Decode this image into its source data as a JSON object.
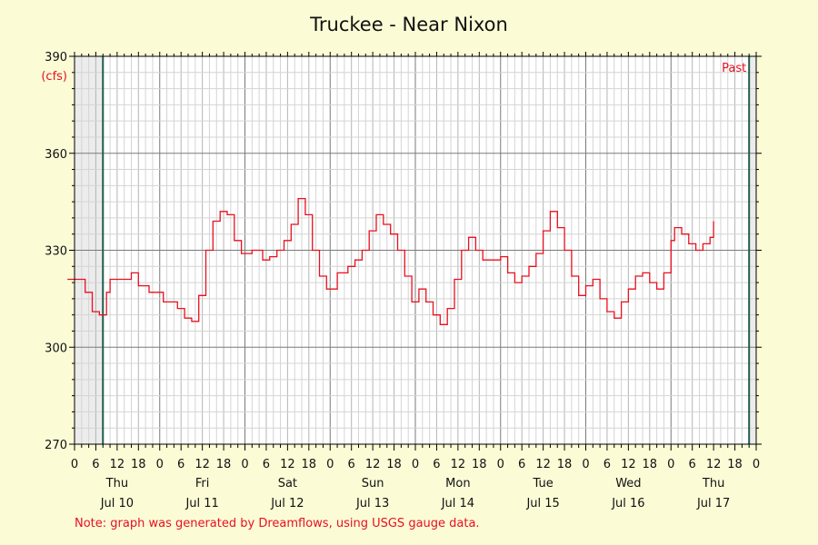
{
  "chart_data": {
    "type": "line",
    "title": "Truckee - Near Nixon",
    "ylabel": "(cfs)",
    "ylim": [
      270,
      390
    ],
    "yticks": [
      270,
      300,
      330,
      360,
      390
    ],
    "x_start": "2025-07-10T00:00",
    "x_end": "2025-07-18T00:00",
    "x_hour_ticks": [
      "0",
      "6",
      "12",
      "18"
    ],
    "day_labels": [
      {
        "day": "Thu",
        "date": "Jul 10"
      },
      {
        "day": "Fri",
        "date": "Jul 11"
      },
      {
        "day": "Sat",
        "date": "Jul 12"
      },
      {
        "day": "Sun",
        "date": "Jul 13"
      },
      {
        "day": "Mon",
        "date": "Jul 14"
      },
      {
        "day": "Tue",
        "date": "Jul 15"
      },
      {
        "day": "Wed",
        "date": "Jul 16"
      },
      {
        "day": "Thu",
        "date": "Jul 17"
      }
    ],
    "past_label": "Past",
    "data_start": "2025-07-10T08:00",
    "data_end": "2025-07-17T22:00",
    "grid": true,
    "colors": {
      "line": "#e8101e",
      "marker": "#1f5e4d",
      "shade": "#ececec"
    },
    "series": [
      {
        "points": [
          [
            "2025-07-09T22:00",
            321
          ],
          [
            "2025-07-10T01:00",
            321
          ],
          [
            "2025-07-10T03:00",
            317
          ],
          [
            "2025-07-10T05:00",
            311
          ],
          [
            "2025-07-10T07:00",
            310
          ],
          [
            "2025-07-10T09:00",
            317
          ],
          [
            "2025-07-10T10:00",
            321
          ],
          [
            "2025-07-10T15:00",
            321
          ],
          [
            "2025-07-10T16:00",
            323
          ],
          [
            "2025-07-10T18:00",
            319
          ],
          [
            "2025-07-10T21:00",
            317
          ],
          [
            "2025-07-11T01:00",
            314
          ],
          [
            "2025-07-11T05:00",
            312
          ],
          [
            "2025-07-11T07:00",
            309
          ],
          [
            "2025-07-11T09:00",
            308
          ],
          [
            "2025-07-11T11:00",
            316
          ],
          [
            "2025-07-11T13:00",
            330
          ],
          [
            "2025-07-11T15:00",
            339
          ],
          [
            "2025-07-11T17:00",
            342
          ],
          [
            "2025-07-11T19:00",
            341
          ],
          [
            "2025-07-11T21:00",
            333
          ],
          [
            "2025-07-11T23:00",
            329
          ],
          [
            "2025-07-12T02:00",
            330
          ],
          [
            "2025-07-12T05:00",
            327
          ],
          [
            "2025-07-12T07:00",
            328
          ],
          [
            "2025-07-12T09:00",
            330
          ],
          [
            "2025-07-12T11:00",
            333
          ],
          [
            "2025-07-12T13:00",
            338
          ],
          [
            "2025-07-12T15:00",
            346
          ],
          [
            "2025-07-12T17:00",
            341
          ],
          [
            "2025-07-12T19:00",
            330
          ],
          [
            "2025-07-12T21:00",
            322
          ],
          [
            "2025-07-12T23:00",
            318
          ],
          [
            "2025-07-13T02:00",
            323
          ],
          [
            "2025-07-13T05:00",
            325
          ],
          [
            "2025-07-13T07:00",
            327
          ],
          [
            "2025-07-13T09:00",
            330
          ],
          [
            "2025-07-13T11:00",
            336
          ],
          [
            "2025-07-13T13:00",
            341
          ],
          [
            "2025-07-13T15:00",
            338
          ],
          [
            "2025-07-13T17:00",
            335
          ],
          [
            "2025-07-13T19:00",
            330
          ],
          [
            "2025-07-13T21:00",
            322
          ],
          [
            "2025-07-13T23:00",
            314
          ],
          [
            "2025-07-14T01:00",
            318
          ],
          [
            "2025-07-14T03:00",
            314
          ],
          [
            "2025-07-14T05:00",
            310
          ],
          [
            "2025-07-14T07:00",
            307
          ],
          [
            "2025-07-14T09:00",
            312
          ],
          [
            "2025-07-14T11:00",
            321
          ],
          [
            "2025-07-14T13:00",
            330
          ],
          [
            "2025-07-14T15:00",
            334
          ],
          [
            "2025-07-14T17:00",
            330
          ],
          [
            "2025-07-14T19:00",
            327
          ],
          [
            "2025-07-14T21:00",
            327
          ],
          [
            "2025-07-15T00:00",
            328
          ],
          [
            "2025-07-15T02:00",
            323
          ],
          [
            "2025-07-15T04:00",
            320
          ],
          [
            "2025-07-15T06:00",
            322
          ],
          [
            "2025-07-15T08:00",
            325
          ],
          [
            "2025-07-15T10:00",
            329
          ],
          [
            "2025-07-15T12:00",
            336
          ],
          [
            "2025-07-15T14:00",
            342
          ],
          [
            "2025-07-15T16:00",
            337
          ],
          [
            "2025-07-15T18:00",
            330
          ],
          [
            "2025-07-15T20:00",
            322
          ],
          [
            "2025-07-15T22:00",
            316
          ],
          [
            "2025-07-16T00:00",
            319
          ],
          [
            "2025-07-16T02:00",
            321
          ],
          [
            "2025-07-16T04:00",
            315
          ],
          [
            "2025-07-16T06:00",
            311
          ],
          [
            "2025-07-16T08:00",
            309
          ],
          [
            "2025-07-16T10:00",
            314
          ],
          [
            "2025-07-16T12:00",
            318
          ],
          [
            "2025-07-16T14:00",
            322
          ],
          [
            "2025-07-16T16:00",
            323
          ],
          [
            "2025-07-16T18:00",
            320
          ],
          [
            "2025-07-16T20:00",
            318
          ],
          [
            "2025-07-16T22:00",
            323
          ],
          [
            "2025-07-17T00:00",
            333
          ],
          [
            "2025-07-17T01:00",
            337
          ],
          [
            "2025-07-17T03:00",
            335
          ],
          [
            "2025-07-17T05:00",
            332
          ],
          [
            "2025-07-17T07:00",
            330
          ],
          [
            "2025-07-17T09:00",
            332
          ],
          [
            "2025-07-17T11:00",
            334
          ],
          [
            "2025-07-17T12:00",
            339
          ]
        ]
      }
    ],
    "note": "Note: graph was generated by Dreamflows, using USGS gauge data."
  }
}
